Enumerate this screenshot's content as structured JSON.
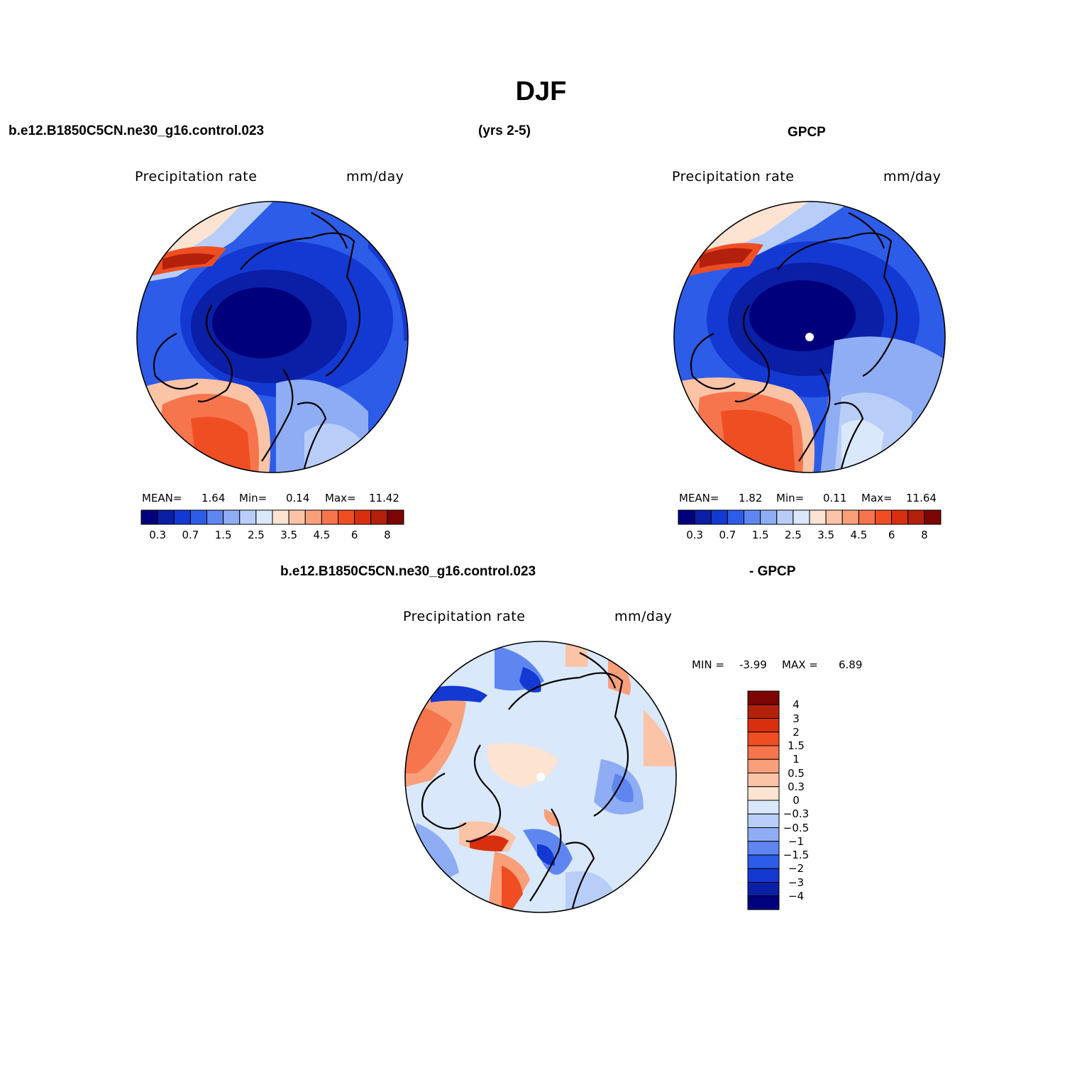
{
  "title": "DJF",
  "header": {
    "case_name": "b.e12.B1850C5CN.ne30_g16.control.023",
    "years": "(yrs 2-5)",
    "obs_name": "GPCP"
  },
  "panels": [
    {
      "id": "model",
      "var_label": "Precipitation  rate",
      "units": "mm/day",
      "stats": {
        "mean_label": "MEAN=",
        "mean": "1.64",
        "min_label": "Min=",
        "min": "0.14",
        "max_label": "Max=",
        "max": "11.42"
      }
    },
    {
      "id": "obs",
      "var_label": "Precipitation  rate",
      "units": "mm/day",
      "stats": {
        "mean_label": "MEAN=",
        "mean": "1.82",
        "min_label": "Min=",
        "min": "0.11",
        "max_label": "Max=",
        "max": "11.64"
      }
    }
  ],
  "diff": {
    "case_name": "b.e12.B1850C5CN.ne30_g16.control.023",
    "obs_name": "- GPCP",
    "var_label": "Precipitation  rate",
    "units": "mm/day",
    "minmax": {
      "min_label": "MIN =",
      "min": "-3.99",
      "max_label": "MAX =",
      "max": "6.89"
    }
  },
  "colorbar_abs": {
    "colors": [
      "#00007d",
      "#0a1fa6",
      "#1339d2",
      "#2d5ce8",
      "#5f86f0",
      "#8fadf5",
      "#b8cef9",
      "#dae8fb",
      "#fde3d2",
      "#fcc4a6",
      "#f9a07b",
      "#f6754d",
      "#ef4e23",
      "#d8300e",
      "#b3200b",
      "#7d0505"
    ],
    "labels": [
      "0.3",
      "0.7",
      "1.5",
      "2.5",
      "3.5",
      "4.5",
      "6",
      "8"
    ]
  },
  "colorbar_diff": {
    "colors": [
      "#7d0505",
      "#b3200b",
      "#d8300e",
      "#ef4e23",
      "#f6754d",
      "#f9a07b",
      "#fcc4a6",
      "#fde3d2",
      "#dae8fb",
      "#b8cef9",
      "#8fadf5",
      "#5f86f0",
      "#2d5ce8",
      "#1339d2",
      "#0a1fa6",
      "#00007d"
    ],
    "labels": [
      "4",
      "3",
      "2",
      "1.5",
      "1",
      "0.5",
      "0.3",
      "0",
      "−0.3",
      "−0.5",
      "−1",
      "−1.5",
      "−2",
      "−3",
      "−4"
    ]
  }
}
